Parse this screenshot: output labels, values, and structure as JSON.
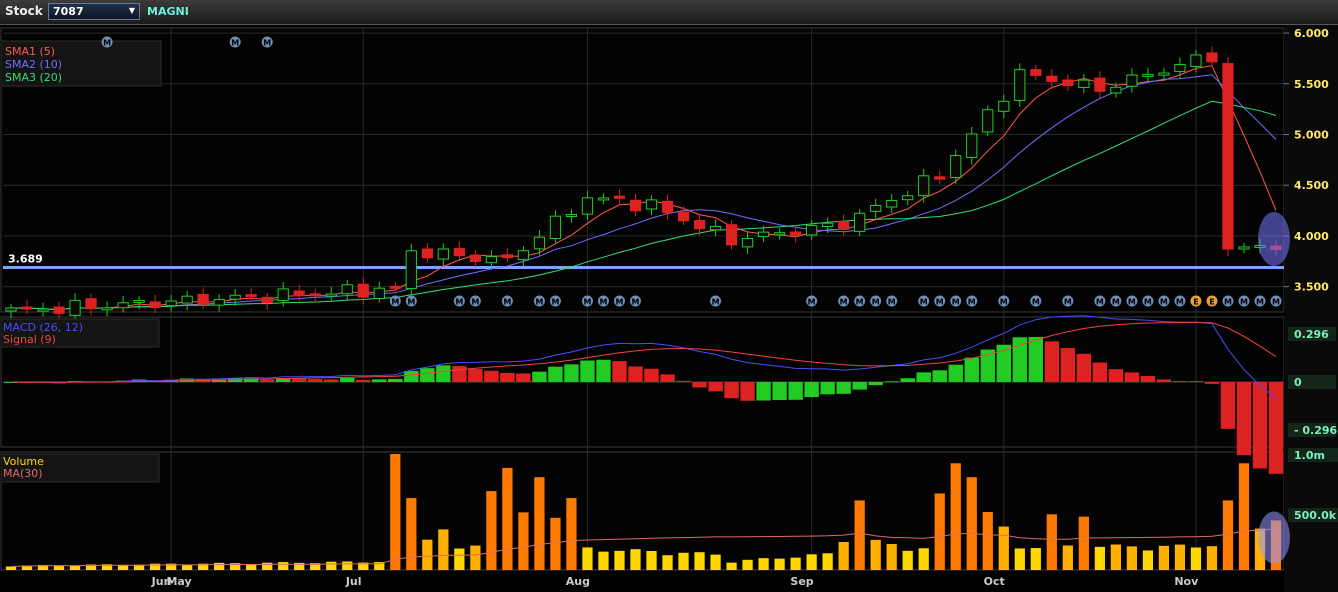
{
  "toolbar": {
    "stock_label": "Stock :",
    "stock_code": "7087",
    "stock_name": "MAGNI",
    "caret": "▼"
  },
  "colors": {
    "up": "#22cc22",
    "down": "#dd2222",
    "sma1": "#ff5a4a",
    "sma2": "#6f6fff",
    "sma3": "#33dd77",
    "macd": "#4b4bff",
    "signal": "#ee4444",
    "volume_high": "#ff7a00",
    "volume_low": "#ffd800",
    "support": "#7ea2ff"
  },
  "chart_data": [
    {
      "type": "candlestick",
      "panel": "price",
      "ylim": [
        3.25,
        6.05
      ],
      "yticks": [
        "6.000",
        "5.500",
        "5.000",
        "4.500",
        "4.000",
        "3.500"
      ],
      "months": [
        "May",
        "Jun",
        "Jul",
        "Aug",
        "Sep",
        "Oct",
        "Nov"
      ],
      "legend": [
        "SMA1 (5)",
        "SMA2 (10)",
        "SMA3 (20)"
      ],
      "support_line": {
        "label": "3.689",
        "value": 3.689
      },
      "segments": [
        {
          "from": 0,
          "to": 24,
          "start": 3.26,
          "end": 3.48
        },
        {
          "from": 24,
          "to": 25,
          "start": 3.48,
          "end": 3.85
        },
        {
          "from": 25,
          "to": 31,
          "start": 3.85,
          "end": 3.76
        },
        {
          "from": 31,
          "to": 36,
          "start": 3.76,
          "end": 4.38
        },
        {
          "from": 36,
          "to": 40,
          "start": 4.38,
          "end": 4.3
        },
        {
          "from": 40,
          "to": 45,
          "start": 4.3,
          "end": 3.96
        },
        {
          "from": 45,
          "to": 52,
          "start": 3.96,
          "end": 4.12
        },
        {
          "from": 52,
          "to": 58,
          "start": 4.12,
          "end": 4.6
        },
        {
          "from": 58,
          "to": 63,
          "start": 4.6,
          "end": 5.6
        },
        {
          "from": 63,
          "to": 68,
          "start": 5.6,
          "end": 5.45
        },
        {
          "from": 68,
          "to": 75,
          "start": 5.45,
          "end": 5.78
        },
        {
          "from": 75,
          "to": 76,
          "start": 5.78,
          "end": 3.85
        },
        {
          "from": 76,
          "to": 80,
          "start": 3.85,
          "end": 3.95
        }
      ],
      "volume_segments": [
        {
          "from": 0,
          "to": 24,
          "start": 0.04,
          "end": 0.08
        },
        {
          "from": 24,
          "to": 27,
          "start": 0.45,
          "end": 0.28
        },
        {
          "from": 27,
          "to": 31,
          "start": 0.14,
          "end": 0.32
        },
        {
          "from": 31,
          "to": 36,
          "start": 0.55,
          "end": 0.3
        },
        {
          "from": 36,
          "to": 45,
          "start": 0.2,
          "end": 0.14
        },
        {
          "from": 45,
          "to": 52,
          "start": 0.08,
          "end": 0.16
        },
        {
          "from": 52,
          "to": 58,
          "start": 0.3,
          "end": 0.18
        },
        {
          "from": 58,
          "to": 63,
          "start": 0.7,
          "end": 0.3
        },
        {
          "from": 63,
          "to": 75,
          "start": 0.22,
          "end": 0.22
        },
        {
          "from": 75,
          "to": 80,
          "start": 0.25,
          "end": 0.55
        }
      ],
      "volume_spikes": [
        {
          "i": 24,
          "v": 1.0
        },
        {
          "i": 25,
          "v": 0.62
        },
        {
          "i": 27,
          "v": 0.35
        },
        {
          "i": 30,
          "v": 0.68
        },
        {
          "i": 31,
          "v": 0.88
        },
        {
          "i": 33,
          "v": 0.8
        },
        {
          "i": 35,
          "v": 0.62
        },
        {
          "i": 34,
          "v": 0.45
        },
        {
          "i": 53,
          "v": 0.6
        },
        {
          "i": 58,
          "v": 0.66
        },
        {
          "i": 59,
          "v": 0.92
        },
        {
          "i": 60,
          "v": 0.8
        },
        {
          "i": 61,
          "v": 0.5
        },
        {
          "i": 65,
          "v": 0.48
        },
        {
          "i": 67,
          "v": 0.46
        },
        {
          "i": 76,
          "v": 0.6
        },
        {
          "i": 77,
          "v": 0.92
        }
      ]
    },
    {
      "type": "bar",
      "panel": "macd",
      "title": "MACD (26, 12)",
      "legend": [
        "MACD (26, 12)",
        "Signal (9)"
      ],
      "ylim": [
        -0.4,
        0.4
      ],
      "yticks": [
        "0.296",
        "0",
        "- 0.296"
      ]
    },
    {
      "type": "bar",
      "panel": "volume",
      "legend": [
        "Volume",
        "MA(30)"
      ],
      "ylim": [
        0,
        1.0
      ],
      "yticks": [
        "1.0m",
        "500.0k"
      ]
    }
  ],
  "event_markers": [
    {
      "label": "M",
      "i": 6,
      "row": "top"
    },
    {
      "label": "M",
      "i": 14,
      "row": "top"
    },
    {
      "label": "M",
      "i": 16,
      "row": "top"
    },
    {
      "label": "M",
      "i": 24,
      "row": "bottom"
    },
    {
      "label": "M",
      "i": 25,
      "row": "bottom"
    },
    {
      "label": "M",
      "i": 28,
      "row": "bottom"
    },
    {
      "label": "M",
      "i": 29,
      "row": "bottom"
    },
    {
      "label": "M",
      "i": 31,
      "row": "bottom"
    },
    {
      "label": "M",
      "i": 33,
      "row": "bottom"
    },
    {
      "label": "M",
      "i": 34,
      "row": "bottom"
    },
    {
      "label": "M",
      "i": 36,
      "row": "bottom"
    },
    {
      "label": "M",
      "i": 37,
      "row": "bottom"
    },
    {
      "label": "M",
      "i": 38,
      "row": "bottom"
    },
    {
      "label": "M",
      "i": 39,
      "row": "bottom"
    },
    {
      "label": "M",
      "i": 44,
      "row": "bottom"
    },
    {
      "label": "M",
      "i": 50,
      "row": "bottom"
    },
    {
      "label": "M",
      "i": 52,
      "row": "bottom"
    },
    {
      "label": "M",
      "i": 53,
      "row": "bottom"
    },
    {
      "label": "M",
      "i": 54,
      "row": "bottom"
    },
    {
      "label": "M",
      "i": 55,
      "row": "bottom"
    },
    {
      "label": "M",
      "i": 57,
      "row": "bottom"
    },
    {
      "label": "M",
      "i": 58,
      "row": "bottom"
    },
    {
      "label": "M",
      "i": 59,
      "row": "bottom"
    },
    {
      "label": "M",
      "i": 60,
      "row": "bottom"
    },
    {
      "label": "M",
      "i": 62,
      "row": "bottom"
    },
    {
      "label": "M",
      "i": 64,
      "row": "bottom"
    },
    {
      "label": "M",
      "i": 66,
      "row": "bottom"
    },
    {
      "label": "M",
      "i": 68,
      "row": "bottom"
    },
    {
      "label": "M",
      "i": 69,
      "row": "bottom"
    },
    {
      "label": "M",
      "i": 70,
      "row": "bottom"
    },
    {
      "label": "M",
      "i": 71,
      "row": "bottom"
    },
    {
      "label": "M",
      "i": 72,
      "row": "bottom"
    },
    {
      "label": "M",
      "i": 73,
      "row": "bottom"
    },
    {
      "label": "E",
      "i": 74,
      "row": "bottom"
    },
    {
      "label": "E",
      "i": 75,
      "row": "bottom"
    },
    {
      "label": "M",
      "i": 76,
      "row": "bottom"
    },
    {
      "label": "M",
      "i": 77,
      "row": "bottom"
    },
    {
      "label": "M",
      "i": 78,
      "row": "bottom"
    },
    {
      "label": "M",
      "i": 79,
      "row": "bottom"
    }
  ]
}
